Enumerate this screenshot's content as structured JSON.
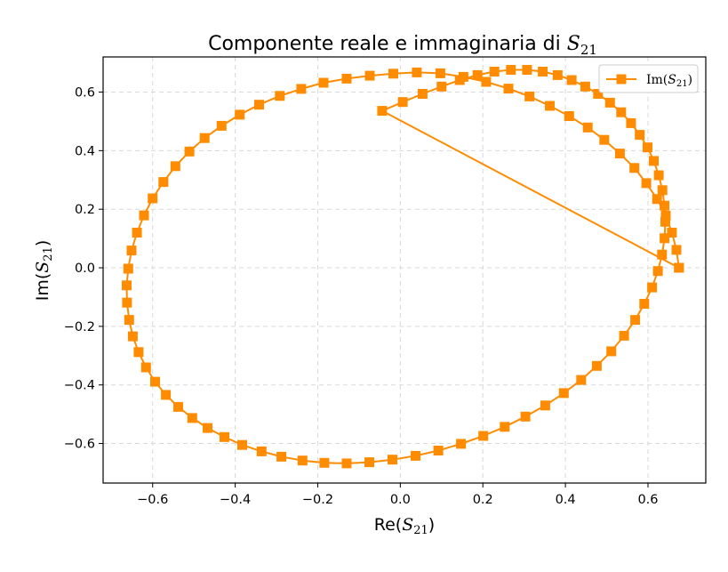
{
  "chart_data": {
    "type": "line",
    "title": "Componente reale e immaginaria di S21",
    "xlabel": "Re(S21)",
    "ylabel": "Im(S21)",
    "xlim": [
      -0.72,
      0.74
    ],
    "ylim": [
      -0.735,
      0.72
    ],
    "xticks": [
      -0.6,
      -0.4,
      -0.2,
      0.0,
      0.2,
      0.4,
      0.6
    ],
    "yticks": [
      -0.6,
      -0.4,
      -0.2,
      0.0,
      0.2,
      0.4,
      0.6
    ],
    "xtick_labels": [
      "−0.6",
      "−0.4",
      "−0.2",
      "0.0",
      "0.2",
      "0.4",
      "0.6"
    ],
    "ytick_labels": [
      "−0.6",
      "−0.4",
      "−0.2",
      "0.0",
      "0.2",
      "0.4",
      "0.6"
    ],
    "grid": true,
    "legend_position": "top-right",
    "color": "#ff8c00",
    "marker": "square",
    "series": [
      {
        "name": "Im(S21)",
        "x": [
          0.675,
          0.669,
          0.658,
          0.643,
          0.622,
          0.596,
          0.567,
          0.532,
          0.494,
          0.454,
          0.409,
          0.362,
          0.313,
          0.262,
          0.208,
          0.153,
          0.097,
          0.04,
          -0.017,
          -0.074,
          -0.13,
          -0.186,
          -0.24,
          -0.292,
          -0.342,
          -0.389,
          -0.433,
          -0.474,
          -0.511,
          -0.545,
          -0.574,
          -0.6,
          -0.621,
          -0.638,
          -0.651,
          -0.659,
          -0.663,
          -0.662,
          -0.657,
          -0.648,
          -0.634,
          -0.616,
          -0.594,
          -0.568,
          -0.538,
          -0.504,
          -0.467,
          -0.426,
          -0.383,
          -0.336,
          -0.288,
          -0.237,
          -0.184,
          -0.13,
          -0.075,
          -0.019,
          0.037,
          0.092,
          0.147,
          0.201,
          0.253,
          0.303,
          0.351,
          0.396,
          0.438,
          0.476,
          0.511,
          0.542,
          0.569,
          0.591,
          0.61,
          0.624,
          0.634,
          0.64,
          0.642,
          0.64,
          0.635,
          0.626,
          0.614,
          0.599,
          0.58,
          0.559,
          0.535,
          0.508,
          0.479,
          0.448,
          0.415,
          0.381,
          0.345,
          0.307,
          0.268,
          0.228,
          0.187,
          0.144,
          0.1,
          0.054,
          0.006,
          -0.044,
          0.675
        ],
        "y": [
          0.0,
          0.061,
          0.12,
          0.178,
          0.235,
          0.289,
          0.341,
          0.39,
          0.437,
          0.479,
          0.518,
          0.553,
          0.585,
          0.612,
          0.635,
          0.652,
          0.664,
          0.667,
          0.663,
          0.656,
          0.646,
          0.632,
          0.611,
          0.587,
          0.557,
          0.523,
          0.485,
          0.443,
          0.397,
          0.347,
          0.293,
          0.237,
          0.179,
          0.12,
          0.059,
          -0.003,
          -0.06,
          -0.119,
          -0.178,
          -0.234,
          -0.288,
          -0.34,
          -0.389,
          -0.434,
          -0.475,
          -0.513,
          -0.547,
          -0.578,
          -0.605,
          -0.627,
          -0.645,
          -0.658,
          -0.666,
          -0.668,
          -0.664,
          -0.655,
          -0.642,
          -0.624,
          -0.601,
          -0.574,
          -0.543,
          -0.508,
          -0.47,
          -0.428,
          -0.383,
          -0.335,
          -0.285,
          -0.232,
          -0.178,
          -0.123,
          -0.067,
          -0.011,
          0.045,
          0.101,
          0.157,
          0.212,
          0.265,
          0.316,
          0.365,
          0.411,
          0.454,
          0.494,
          0.531,
          0.564,
          0.594,
          0.619,
          0.641,
          0.658,
          0.67,
          0.676,
          0.676,
          0.67,
          0.658,
          0.641,
          0.619,
          0.594,
          0.566,
          0.536,
          0.0
        ]
      }
    ]
  },
  "title": {
    "main": "Componente reale e immaginaria di ",
    "sym": "S",
    "sub": "21"
  },
  "xaxis": {
    "prefix": "Re(",
    "sym": "S",
    "sub": "21",
    "suffix": ")"
  },
  "yaxis": {
    "prefix": "Im(",
    "sym": "S",
    "sub": "21",
    "suffix": ")"
  },
  "legend": {
    "prefix": "Im(",
    "sym": "S",
    "sub": "21",
    "suffix": ")"
  }
}
